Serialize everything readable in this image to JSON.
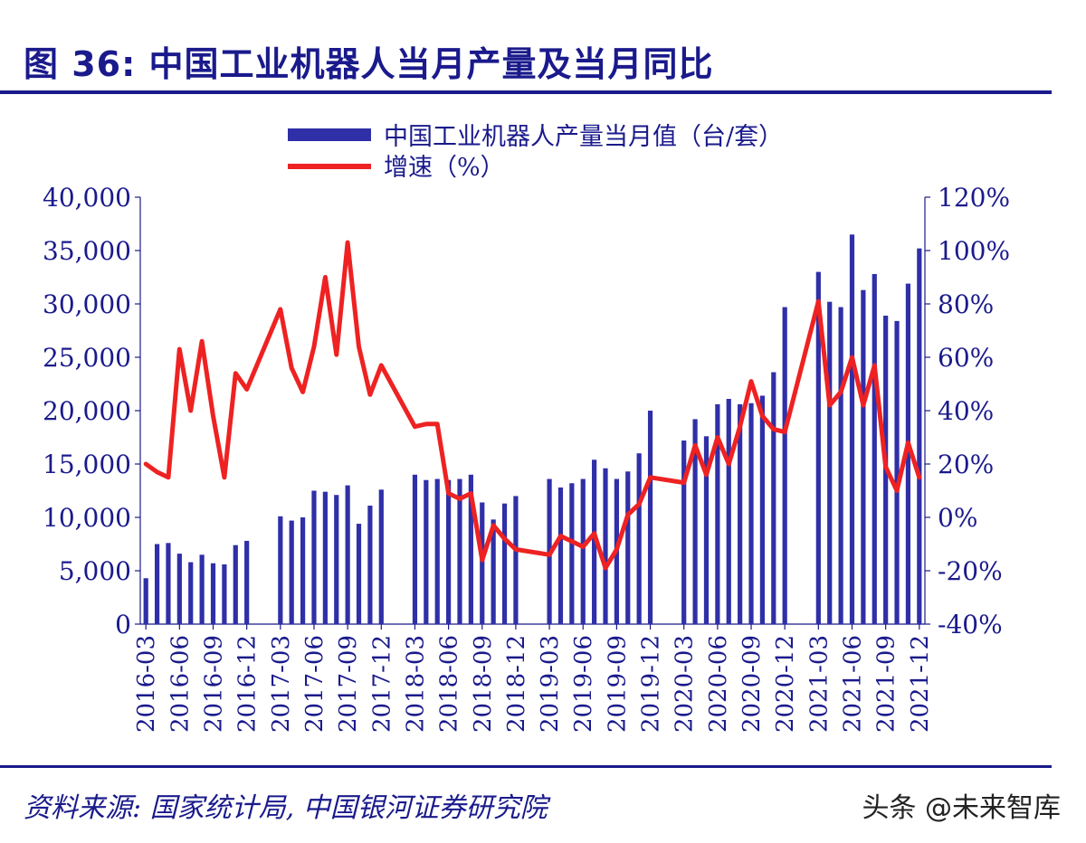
{
  "header": {
    "title": "图 36:  中国工业机器人当月产量及当月同比"
  },
  "footer": {
    "source": "资料来源:  国家统计局,  中国银河证券研究院",
    "watermark": "头条 @未来智库"
  },
  "colors": {
    "bar": "#2f2fa8",
    "line": "#ee2222",
    "text": "#1a1a8c"
  },
  "chart_data": {
    "type": "bar",
    "title": "",
    "legend_position": "top",
    "y_left_ticks": [
      "0",
      "5,000",
      "10,000",
      "15,000",
      "20,000",
      "25,000",
      "30,000",
      "35,000",
      "40,000"
    ],
    "y_right_ticks": [
      "-40%",
      "-20%",
      "0%",
      "20%",
      "40%",
      "60%",
      "80%",
      "100%",
      "120%"
    ],
    "y_left_range": [
      0,
      40000
    ],
    "y_right_range": [
      -40,
      120
    ],
    "x_tick_labels": [
      {
        "label": "2016-03",
        "index": 0
      },
      {
        "label": "2016-06",
        "index": 3
      },
      {
        "label": "2016-09",
        "index": 6
      },
      {
        "label": "2016-12",
        "index": 9
      },
      {
        "label": "2017-03",
        "index": 12
      },
      {
        "label": "2017-06",
        "index": 15
      },
      {
        "label": "2017-09",
        "index": 18
      },
      {
        "label": "2017-12",
        "index": 21
      },
      {
        "label": "2018-03",
        "index": 24
      },
      {
        "label": "2018-06",
        "index": 27
      },
      {
        "label": "2018-09",
        "index": 30
      },
      {
        "label": "2018-12",
        "index": 33
      },
      {
        "label": "2019-03",
        "index": 36
      },
      {
        "label": "2019-06",
        "index": 39
      },
      {
        "label": "2019-09",
        "index": 42
      },
      {
        "label": "2019-12",
        "index": 45
      },
      {
        "label": "2020-03",
        "index": 48
      },
      {
        "label": "2020-06",
        "index": 51
      },
      {
        "label": "2020-09",
        "index": 54
      },
      {
        "label": "2020-12",
        "index": 57
      },
      {
        "label": "2021-03",
        "index": 60
      },
      {
        "label": "2021-06",
        "index": 63
      },
      {
        "label": "2021-09",
        "index": 66
      },
      {
        "label": "2021-12",
        "index": 69
      }
    ],
    "series": [
      {
        "name": "中国工业机器人产量当月值（台/套）",
        "kind": "bar",
        "axis": "left",
        "values": [
          4300,
          7500,
          7600,
          6600,
          5800,
          6500,
          5700,
          5600,
          7400,
          7800,
          null,
          null,
          10100,
          9700,
          10000,
          12500,
          12400,
          12100,
          13000,
          9400,
          11100,
          12600,
          null,
          null,
          14000,
          13500,
          13600,
          13500,
          13600,
          14000,
          11400,
          9800,
          11300,
          12000,
          null,
          null,
          13600,
          12800,
          13200,
          13600,
          15400,
          14600,
          13600,
          14300,
          16000,
          20000,
          null,
          null,
          17200,
          19200,
          17600,
          20600,
          21100,
          20600,
          20700,
          21400,
          23600,
          29700,
          null,
          null,
          33000,
          30200,
          29700,
          36500,
          31300,
          32800,
          28900,
          28400,
          31900,
          35200
        ]
      },
      {
        "name": "增速（%）",
        "kind": "line",
        "axis": "right",
        "values": [
          20,
          17,
          15,
          63,
          40,
          66,
          38,
          15,
          54,
          48,
          null,
          null,
          78,
          56,
          47,
          64,
          90,
          61,
          103,
          64,
          46,
          57,
          null,
          null,
          34,
          35,
          35,
          9,
          7,
          9,
          -16,
          -3,
          -8,
          -12,
          null,
          null,
          -14,
          -7,
          -9,
          -11,
          -6,
          -19,
          -12,
          1,
          5,
          15,
          null,
          null,
          13,
          27,
          16,
          30,
          20,
          34,
          51,
          38,
          33,
          32,
          null,
          null,
          81,
          42,
          47,
          60,
          42,
          57,
          19,
          10,
          28,
          15
        ]
      }
    ]
  }
}
